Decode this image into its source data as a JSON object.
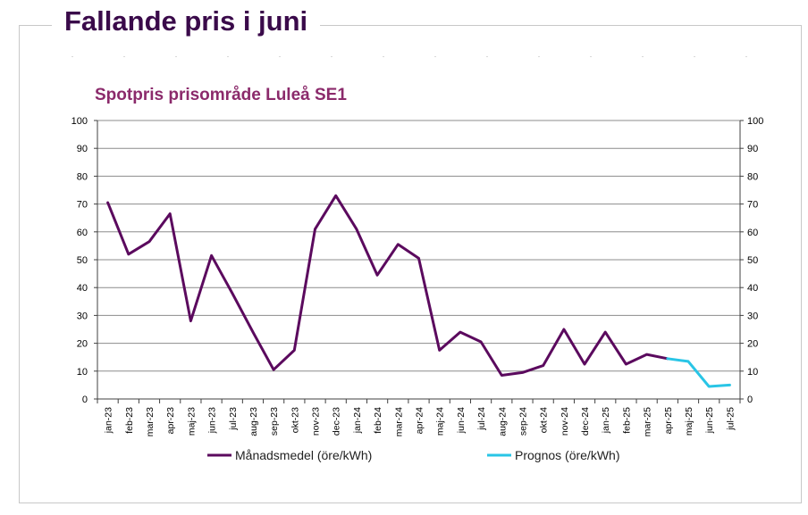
{
  "page": {
    "title": "Fallande pris i juni"
  },
  "colors": {
    "title": "#3a0a4a",
    "chart_title": "#8b2a6b",
    "series_main": "#5b0a5e",
    "series_forecast": "#29c5e6",
    "grid": "#808080"
  },
  "chart_data": {
    "type": "line",
    "title": "Spotpris prisområde Luleå SE1",
    "xlabel": "",
    "ylabel": "",
    "ylim": [
      0,
      100
    ],
    "y_ticks": [
      0,
      10,
      20,
      30,
      40,
      50,
      60,
      70,
      80,
      90,
      100
    ],
    "categories": [
      "jan-23",
      "feb-23",
      "mar-23",
      "apr-23",
      "maj-23",
      "jun-23",
      "jul-23",
      "aug-23",
      "sep-23",
      "okt-23",
      "nov-23",
      "dec-23",
      "jan-24",
      "feb-24",
      "mar-24",
      "apr-24",
      "maj-24",
      "jun-24",
      "jul-24",
      "aug-24",
      "sep-24",
      "okt-24",
      "nov-24",
      "dec-24",
      "jan-25",
      "feb-25",
      "mar-25",
      "apr-25",
      "maj-25",
      "jun-25",
      "jul-25"
    ],
    "grid": true,
    "secondary_y_axis": true,
    "legend_position": "bottom",
    "series": [
      {
        "name": "Månadsmedel (öre/kWh)",
        "color": "#5b0a5e",
        "values": [
          70.5,
          52,
          56.5,
          66.5,
          28,
          51.5,
          38,
          24,
          10.5,
          17.5,
          61,
          73,
          61,
          44.5,
          55.5,
          50.5,
          17.5,
          24,
          20.5,
          8.5,
          9.5,
          12,
          25,
          12.5,
          24,
          12.5,
          16,
          14.5,
          null,
          null,
          null
        ]
      },
      {
        "name": "Prognos (öre/kWh)",
        "color": "#29c5e6",
        "values": [
          null,
          null,
          null,
          null,
          null,
          null,
          null,
          null,
          null,
          null,
          null,
          null,
          null,
          null,
          null,
          null,
          null,
          null,
          null,
          null,
          null,
          null,
          null,
          null,
          null,
          null,
          null,
          14.5,
          13.5,
          4.5,
          5
        ]
      }
    ]
  }
}
